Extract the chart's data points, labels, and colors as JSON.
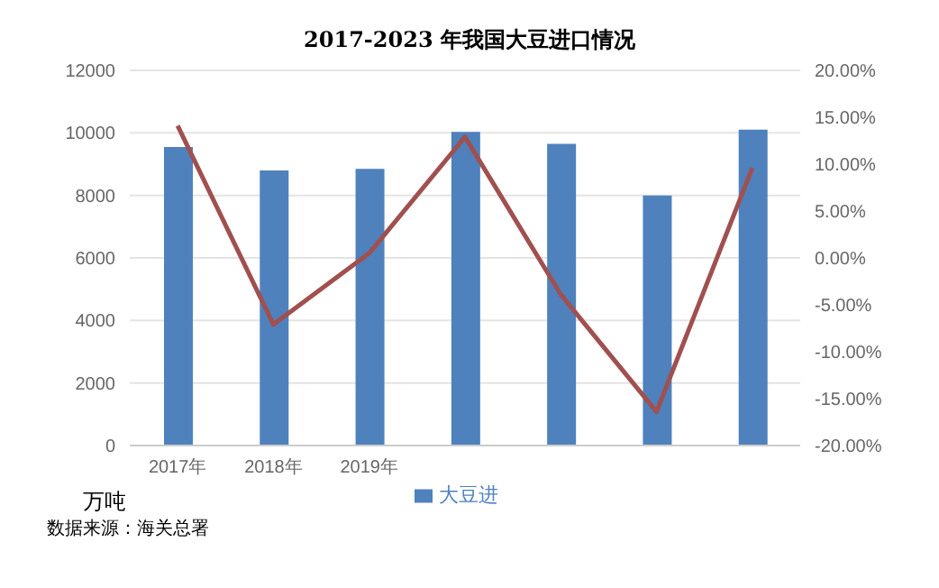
{
  "chart_data": {
    "type": "bar",
    "title": "2017-2023 年我国大豆进口情况",
    "ylabel": "万吨",
    "categories": [
      "2017年",
      "2018年",
      "2019年",
      null,
      null,
      null,
      null
    ],
    "series": [
      {
        "name": "大豆进",
        "color": "#4f81bd",
        "values": [
          9550,
          8800,
          8850,
          10030,
          9650,
          8000,
          10100
        ]
      },
      {
        "type": "line",
        "axis": "y2",
        "color": "#a0504f",
        "values": [
          14.1,
          -7.1,
          0.5,
          12.9,
          -3.9,
          -16.4,
          9.6
        ]
      }
    ],
    "ylim": [
      0,
      12000
    ],
    "yticks": [
      0,
      2000,
      4000,
      6000,
      8000,
      10000,
      12000
    ],
    "y2lim": [
      -20,
      20
    ],
    "y2ticks": [
      {
        "value": -20,
        "label": "-20.00%"
      },
      {
        "value": -15,
        "label": "-15.00%"
      },
      {
        "value": -10,
        "label": "-10.00%"
      },
      {
        "value": -5,
        "label": "-5.00%"
      },
      {
        "value": 0,
        "label": "0.00%"
      },
      {
        "value": 5,
        "label": "5.00%"
      },
      {
        "value": 10,
        "label": "10.00%"
      },
      {
        "value": 15,
        "label": "15.00%"
      },
      {
        "value": 20,
        "label": "20.00%"
      }
    ],
    "grid": "y",
    "legend": "bottom",
    "marker": "none",
    "line_style": "solid",
    "annotations": [
      "数据来源：海关总署"
    ]
  }
}
